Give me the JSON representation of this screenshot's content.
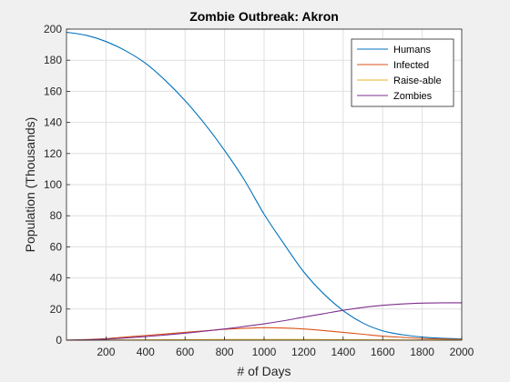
{
  "chart_data": {
    "type": "line",
    "title": "Zombie Outbreak: Akron",
    "xlabel": "# of Days",
    "ylabel": "Population (Thousands)",
    "xlim": [
      0,
      2000
    ],
    "ylim": [
      0,
      200
    ],
    "x_ticks": [
      200,
      400,
      600,
      800,
      1000,
      1200,
      1400,
      1600,
      1800,
      2000
    ],
    "y_ticks": [
      0,
      20,
      40,
      60,
      80,
      100,
      120,
      140,
      160,
      180,
      200
    ],
    "grid": true,
    "legend_position": "top-right",
    "x": [
      0,
      100,
      200,
      300,
      400,
      500,
      600,
      700,
      800,
      900,
      1000,
      1100,
      1200,
      1300,
      1400,
      1500,
      1600,
      1700,
      1800,
      1900,
      2000
    ],
    "series": [
      {
        "name": "Humans",
        "color": "#0072BD",
        "values": [
          198,
          196,
          192,
          186,
          178,
          167,
          154,
          139,
          122,
          103,
          81,
          62,
          44,
          30,
          19,
          11,
          6,
          3.5,
          2,
          1.2,
          0.8
        ]
      },
      {
        "name": "Infected",
        "color": "#D95319",
        "values": [
          0,
          0.4,
          1,
          2,
          3,
          4,
          5,
          6,
          7,
          7.6,
          8,
          7.8,
          7.2,
          6.2,
          5,
          3.8,
          2.6,
          1.8,
          1.1,
          0.7,
          0.4
        ]
      },
      {
        "name": "Raise-able",
        "color": "#EDB120",
        "values": [
          0,
          0.05,
          0.1,
          0.15,
          0.2,
          0.25,
          0.3,
          0.35,
          0.4,
          0.4,
          0.4,
          0.4,
          0.4,
          0.35,
          0.3,
          0.25,
          0.2,
          0.15,
          0.1,
          0.1,
          0.1
        ]
      },
      {
        "name": "Zombies",
        "color": "#7E2F8E",
        "values": [
          0,
          0.2,
          0.7,
          1.4,
          2.3,
          3.3,
          4.5,
          5.8,
          7.2,
          8.8,
          10.5,
          12.5,
          14.8,
          17,
          19.2,
          21,
          22.4,
          23.3,
          23.8,
          24,
          24
        ]
      }
    ]
  }
}
